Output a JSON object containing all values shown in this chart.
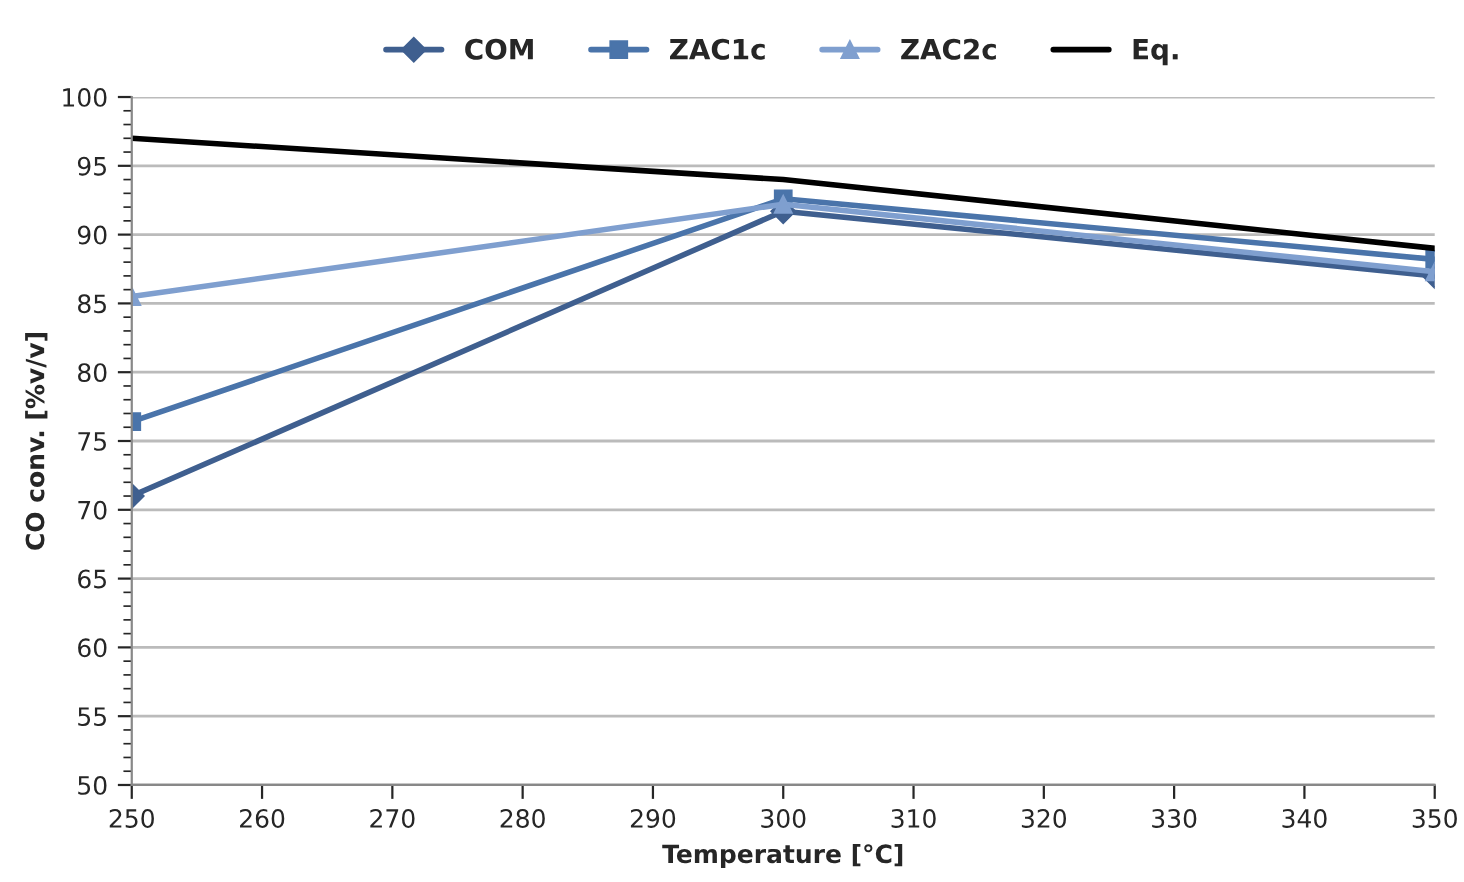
{
  "chart_data": {
    "type": "line",
    "xlabel": "Temperature [°C]",
    "ylabel": "CO conv. [%v/v]",
    "x": [
      250,
      300,
      350
    ],
    "series": [
      {
        "name": "COM",
        "color": "#3f5f8f",
        "values": [
          71,
          91.7,
          87
        ],
        "marker": "diamond"
      },
      {
        "name": "ZAC1c",
        "color": "#4a74aa",
        "values": [
          76.4,
          92.6,
          88.2
        ],
        "marker": "square"
      },
      {
        "name": "ZAC2c",
        "color": "#7f9fcf",
        "values": [
          85.5,
          92.2,
          87.3
        ],
        "marker": "triangle"
      },
      {
        "name": "Eq.",
        "color": "#000000",
        "values": [
          97,
          94,
          89
        ],
        "marker": "none"
      }
    ],
    "xlim": [
      250,
      350
    ],
    "xticks": [
      250,
      260,
      270,
      280,
      290,
      300,
      310,
      320,
      330,
      340,
      350
    ],
    "ylim": [
      50,
      100
    ],
    "yticks": [
      50,
      55,
      60,
      65,
      70,
      75,
      80,
      85,
      90,
      95,
      100
    ],
    "grid": "y",
    "legend": "top",
    "line_style": "solid"
  }
}
